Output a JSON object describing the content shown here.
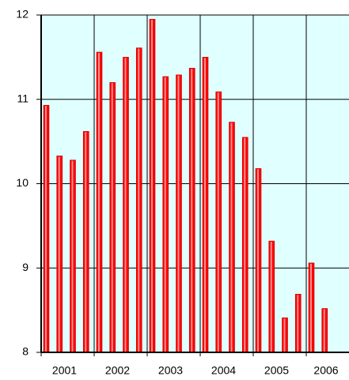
{
  "chart_data": {
    "type": "bar",
    "categories": [
      "2001",
      null,
      null,
      null,
      "2002",
      null,
      null,
      null,
      "2003",
      null,
      null,
      null,
      "2004",
      null,
      null,
      null,
      "2005",
      null,
      null,
      null,
      "2006",
      null
    ],
    "values": [
      10.93,
      10.33,
      10.28,
      10.62,
      11.56,
      11.2,
      11.5,
      11.61,
      11.95,
      11.27,
      11.29,
      11.37,
      11.5,
      11.09,
      10.73,
      10.55,
      10.18,
      9.32,
      8.41,
      8.69,
      9.06,
      8.52
    ],
    "color": "#ff0000",
    "ylim": [
      8,
      12
    ],
    "yticks": [
      8,
      9,
      10,
      11,
      12
    ],
    "grid": true
  }
}
